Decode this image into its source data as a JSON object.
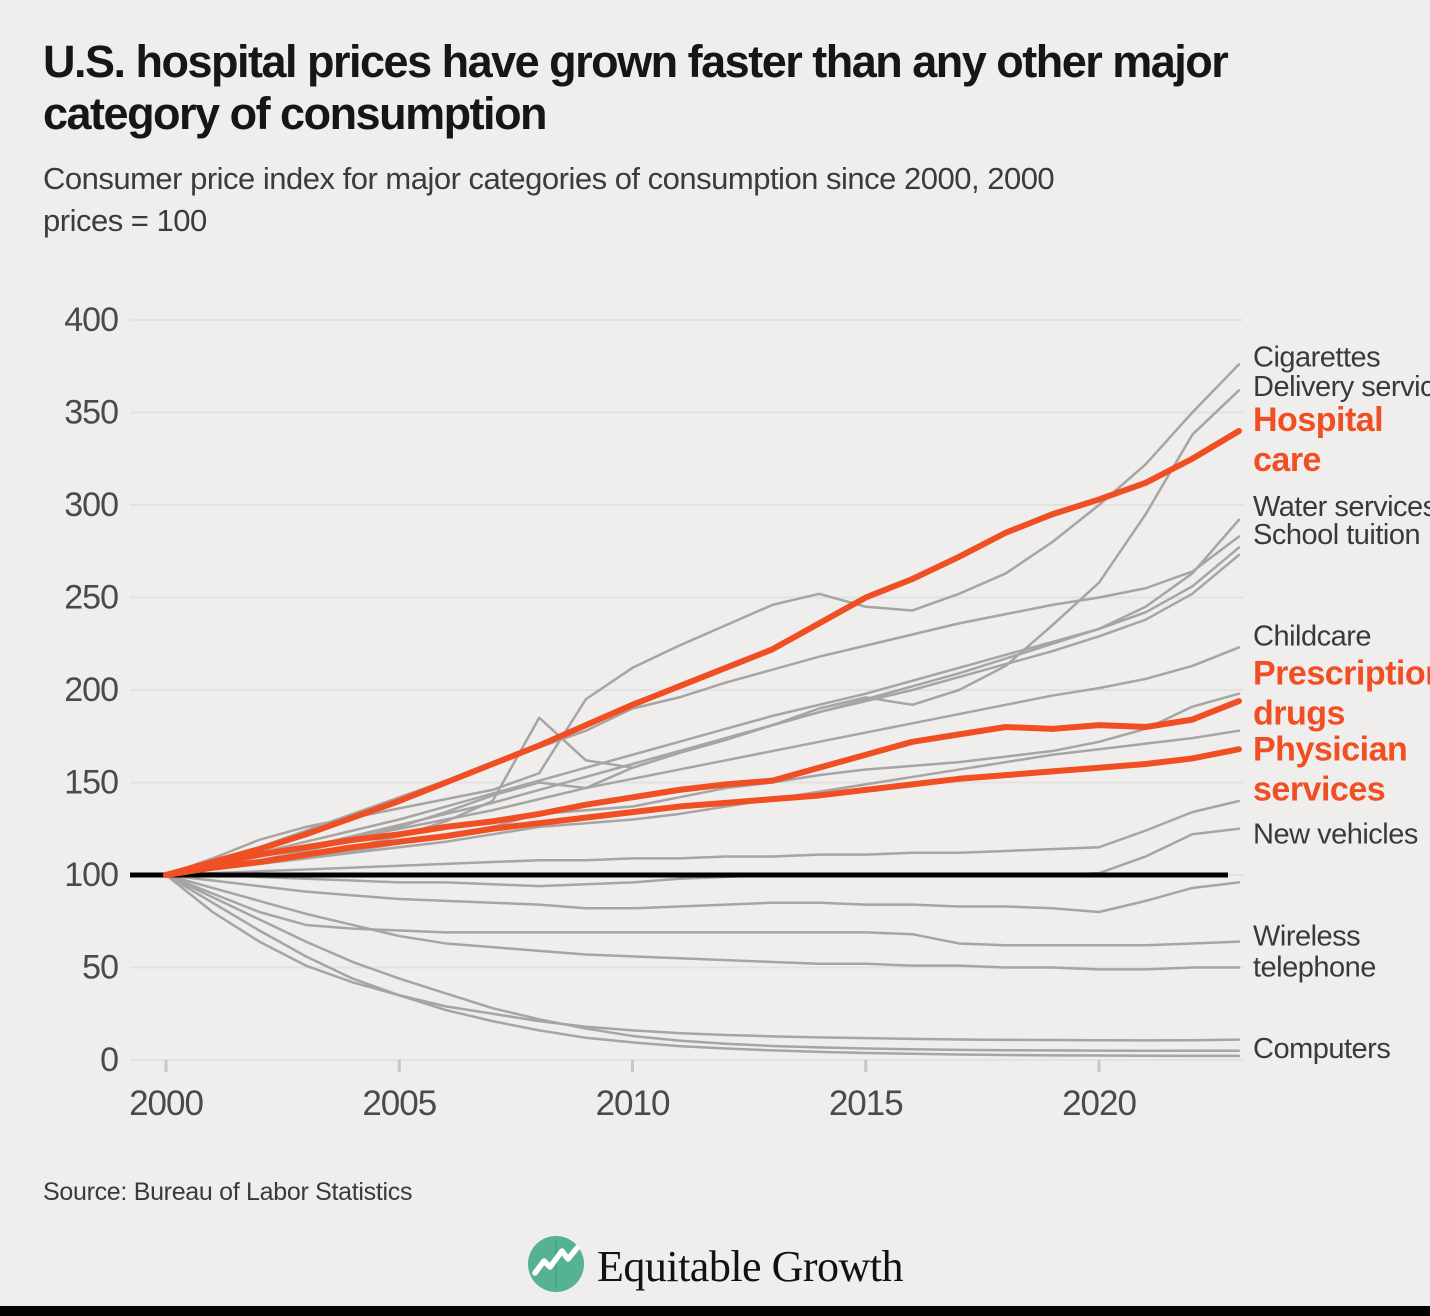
{
  "title": {
    "line1": "U.S. hospital prices have grown faster than any other major",
    "line2": "category of consumption"
  },
  "subtitle": {
    "line1": "Consumer price index for major categories of consumption since 2000, 2000",
    "line2": "prices = 100"
  },
  "source": "Source: Bureau of Labor Statistics",
  "logo": {
    "text": "Equitable Growth",
    "icon": "growth-chart-circle-icon",
    "icon_color": "#55b294"
  },
  "colors": {
    "background": "#efeeec",
    "accent_orange": "#f04f23",
    "line_gray": "#a6a5a3",
    "baseline_black": "#000000",
    "grid": "#e3e2e0",
    "axis_text": "#4a4a4a",
    "label_text": "#3a3a3a"
  },
  "chart_data": {
    "type": "line",
    "x": [
      2000,
      2001,
      2002,
      2003,
      2004,
      2005,
      2006,
      2007,
      2008,
      2009,
      2010,
      2011,
      2012,
      2013,
      2014,
      2015,
      2016,
      2017,
      2018,
      2019,
      2020,
      2021,
      2022,
      2023
    ],
    "xticks": [
      2000,
      2005,
      2010,
      2015,
      2020
    ],
    "yticks": [
      0,
      50,
      100,
      150,
      200,
      250,
      300,
      350,
      400
    ],
    "ylim": [
      0,
      400
    ],
    "baseline": 100,
    "grid": true,
    "legend_position": "right-annotations",
    "series": [
      {
        "name": "Cigarettes",
        "role": "base",
        "values": [
          100,
          109,
          119,
          126,
          131,
          136,
          141,
          146,
          155,
          195,
          212,
          224,
          235,
          246,
          252,
          245,
          243,
          252,
          263,
          280,
          300,
          322,
          350,
          376
        ]
      },
      {
        "name": "Delivery services",
        "role": "base",
        "values": [
          100,
          103,
          106,
          110,
          115,
          121,
          129,
          140,
          185,
          162,
          158,
          166,
          173,
          181,
          190,
          196,
          192,
          200,
          213,
          235,
          258,
          295,
          338,
          362
        ]
      },
      {
        "name": "Water services",
        "role": "base",
        "values": [
          100,
          105,
          110,
          115,
          121,
          127,
          133,
          139,
          146,
          153,
          160,
          167,
          174,
          181,
          188,
          195,
          202,
          209,
          217,
          225,
          233,
          245,
          263,
          292
        ]
      },
      {
        "name": "School tuition",
        "role": "base",
        "values": [
          100,
          107,
          115,
          124,
          133,
          142,
          151,
          160,
          169,
          178,
          190,
          196,
          204,
          211,
          218,
          224,
          230,
          236,
          241,
          246,
          250,
          255,
          264,
          283
        ]
      },
      {
        "name": "",
        "role": "base",
        "values": [
          100,
          106,
          112,
          118,
          124,
          130,
          137,
          144,
          151,
          158,
          165,
          172,
          179,
          186,
          192,
          198,
          205,
          212,
          219,
          226,
          233,
          242,
          256,
          277
        ]
      },
      {
        "name": "",
        "role": "base",
        "values": [
          100,
          104,
          108,
          113,
          119,
          126,
          134,
          143,
          150,
          147,
          158,
          166,
          174,
          181,
          188,
          194,
          200,
          207,
          214,
          221,
          229,
          238,
          252,
          273
        ]
      },
      {
        "name": "Childcare",
        "role": "base",
        "values": [
          100,
          105,
          110,
          115,
          120,
          125,
          130,
          135,
          141,
          147,
          152,
          157,
          162,
          167,
          172,
          177,
          182,
          187,
          192,
          197,
          201,
          206,
          213,
          223
        ]
      },
      {
        "name": "",
        "role": "base",
        "values": [
          100,
          103,
          106,
          109,
          113,
          117,
          121,
          126,
          133,
          135,
          137,
          142,
          147,
          150,
          154,
          157,
          159,
          161,
          164,
          167,
          172,
          179,
          191,
          198
        ]
      },
      {
        "name": "",
        "role": "base",
        "values": [
          100,
          103,
          106,
          109,
          112,
          115,
          118,
          122,
          126,
          128,
          130,
          133,
          137,
          141,
          145,
          149,
          153,
          157,
          161,
          165,
          168,
          171,
          174,
          178
        ]
      },
      {
        "name": "",
        "role": "base",
        "values": [
          100,
          101,
          102,
          103,
          104,
          105,
          106,
          107,
          108,
          108,
          109,
          109,
          110,
          110,
          111,
          111,
          112,
          112,
          113,
          114,
          115,
          124,
          134,
          140
        ]
      },
      {
        "name": "New vehicles",
        "role": "base",
        "values": [
          100,
          100,
          99,
          98,
          97,
          96,
          96,
          95,
          94,
          95,
          96,
          98,
          99,
          100,
          100,
          100,
          100,
          100,
          100,
          100,
          101,
          110,
          122,
          125
        ]
      },
      {
        "name": "",
        "role": "base",
        "values": [
          100,
          97,
          94,
          91,
          89,
          87,
          86,
          85,
          84,
          82,
          82,
          83,
          84,
          85,
          85,
          84,
          84,
          83,
          83,
          82,
          80,
          86,
          93,
          96
        ]
      },
      {
        "name": "Wireless telephone",
        "role": "base",
        "values": [
          100,
          90,
          80,
          73,
          71,
          70,
          69,
          69,
          69,
          69,
          69,
          69,
          69,
          69,
          69,
          69,
          68,
          63,
          62,
          62,
          62,
          62,
          63,
          64
        ]
      },
      {
        "name": "",
        "role": "base",
        "values": [
          100,
          93,
          86,
          79,
          73,
          67,
          63,
          61,
          59,
          57,
          56,
          55,
          54,
          53,
          52,
          52,
          51,
          51,
          50,
          50,
          49,
          49,
          50,
          50
        ]
      },
      {
        "name": "Computers",
        "role": "base",
        "values": [
          100,
          80,
          64,
          51,
          42,
          35,
          29,
          25,
          21,
          18,
          16,
          14.5,
          13.5,
          12.8,
          12.2,
          11.8,
          11.4,
          11.1,
          10.9,
          10.8,
          10.7,
          10.6,
          10.7,
          11
        ]
      },
      {
        "name": "",
        "role": "base",
        "values": [
          100,
          88,
          76,
          64,
          53,
          44,
          36,
          28,
          22,
          17,
          13,
          10.5,
          8.8,
          7.6,
          6.8,
          6.2,
          5.8,
          5.5,
          5.3,
          5.2,
          5.1,
          5,
          5,
          5
        ]
      },
      {
        "name": "",
        "role": "base",
        "values": [
          100,
          85,
          70,
          56,
          44,
          35,
          27,
          21,
          16,
          12,
          9.5,
          7.5,
          6.2,
          5.2,
          4.4,
          3.8,
          3.4,
          3,
          2.7,
          2.5,
          2.4,
          2.3,
          2.2,
          2.2
        ]
      },
      {
        "name": "Hospital care",
        "role": "highlight",
        "values": [
          100,
          107,
          114,
          122,
          131,
          140,
          150,
          160,
          170,
          181,
          192,
          202,
          212,
          222,
          236,
          250,
          260,
          272,
          285,
          295,
          303,
          312,
          325,
          340
        ]
      },
      {
        "name": "Prescription drugs",
        "role": "highlight",
        "values": [
          100,
          106,
          111,
          115,
          119,
          122,
          126,
          129,
          133,
          138,
          142,
          146,
          149,
          151,
          158,
          165,
          172,
          176,
          180,
          179,
          181,
          180,
          184,
          194
        ]
      },
      {
        "name": "Physician services",
        "role": "highlight",
        "values": [
          100,
          104,
          107,
          111,
          115,
          118,
          121,
          125,
          128,
          131,
          134,
          137,
          139,
          141,
          143,
          146,
          149,
          152,
          154,
          156,
          158,
          160,
          163,
          168
        ]
      }
    ],
    "right_labels": [
      {
        "lines": [
          "Cigarettes"
        ],
        "at": 375,
        "emphasis": false
      },
      {
        "lines": [
          "Delivery services"
        ],
        "at": 359,
        "emphasis": false
      },
      {
        "lines": [
          "Hospital",
          "care"
        ],
        "at": 340,
        "emphasis": true
      },
      {
        "lines": [
          "Water services"
        ],
        "at": 294,
        "emphasis": false
      },
      {
        "lines": [
          "School tuition"
        ],
        "at": 279,
        "emphasis": false
      },
      {
        "lines": [
          "Childcare"
        ],
        "at": 224,
        "emphasis": false
      },
      {
        "lines": [
          "Prescription",
          "drugs"
        ],
        "at": 203,
        "emphasis": true
      },
      {
        "lines": [
          "Physician",
          "services"
        ],
        "at": 162,
        "emphasis": true
      },
      {
        "lines": [
          "New vehicles"
        ],
        "at": 117,
        "emphasis": false
      },
      {
        "lines": [
          "Wireless",
          "telephone"
        ],
        "at": 62,
        "emphasis": false
      },
      {
        "lines": [
          "Computers"
        ],
        "at": 1,
        "emphasis": false
      }
    ]
  }
}
